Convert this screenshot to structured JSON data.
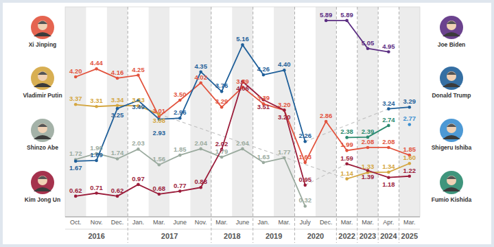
{
  "chart_data": {
    "type": "line",
    "categories": [
      "Oct.",
      "Nov.",
      "Dec.",
      "Jan.",
      "Mar.",
      "June",
      "Nov.",
      "Mar.",
      "June",
      "Jan.",
      "Mar.",
      "July",
      "Dec.",
      "Mar.",
      "Mar.",
      "Apr.",
      "Mar."
    ],
    "category_groups": [
      "2016",
      "2016",
      "2016",
      "2017",
      "2017",
      "2017",
      "2017",
      "2018",
      "2018",
      "2019",
      "2019",
      "2020",
      "2020",
      "2022",
      "2023",
      "2024",
      "2025"
    ],
    "ylim": [
      0,
      6.3
    ],
    "tick_labels": "x",
    "grid": true,
    "data_labels": true,
    "marker": "circle",
    "series": [
      {
        "name": "Xi Jinping",
        "color": "#e2533d",
        "values": [
          4.2,
          4.44,
          4.16,
          4.25,
          3.01,
          3.5,
          4.02,
          3.29,
          3.89,
          3.39,
          3.2,
          1.63,
          2.86,
          1.99,
          2.08,
          2.08,
          1.85
        ]
      },
      {
        "name": "Vladimir Putin",
        "color": "#d4a640",
        "values": [
          3.37,
          3.31,
          3.34,
          3.33,
          3.08,
          null,
          null,
          null,
          null,
          null,
          null,
          null,
          null,
          1.14,
          1.33,
          1.34,
          1.6
        ]
      },
      {
        "name": "Shinzo Abe",
        "color": "#9aaa9e",
        "values": [
          1.72,
          1.9,
          1.74,
          2.03,
          1.56,
          1.85,
          2.04,
          1.79,
          2.04,
          1.63,
          1.77,
          0.32,
          null,
          null,
          null,
          null,
          null
        ]
      },
      {
        "name": "Kim Jong Un",
        "color": "#9b1c3a",
        "values": [
          0.62,
          0.71,
          0.62,
          0.97,
          0.68,
          0.77,
          0.88,
          2.02,
          4.06,
          3.51,
          3.2,
          0.95,
          null,
          1.59,
          1.39,
          1.18,
          1.22
        ]
      },
      {
        "name": "Joe Biden",
        "color": "#5b2d82",
        "values": [
          null,
          null,
          null,
          null,
          null,
          null,
          null,
          null,
          null,
          null,
          null,
          null,
          5.89,
          5.89,
          5.05,
          4.95,
          null
        ]
      },
      {
        "name": "Donald Trump",
        "color": "#1f5f99",
        "values": [
          1.67,
          1.69,
          3.25,
          3.49,
          2.93,
          2.96,
          4.35,
          3.76,
          5.16,
          4.26,
          4.4,
          2.26,
          null,
          null,
          null,
          3.24,
          3.29
        ]
      },
      {
        "name": "Shigeru Ishiba",
        "color": "#3a8ed0",
        "values": [
          null,
          null,
          null,
          null,
          null,
          null,
          null,
          null,
          null,
          null,
          null,
          null,
          null,
          null,
          null,
          null,
          2.77
        ]
      },
      {
        "name": "Fumio Kishida",
        "color": "#2a8a6e",
        "values": [
          null,
          null,
          null,
          null,
          null,
          null,
          null,
          null,
          null,
          null,
          null,
          null,
          null,
          2.38,
          2.39,
          2.74,
          null
        ]
      }
    ]
  }
}
